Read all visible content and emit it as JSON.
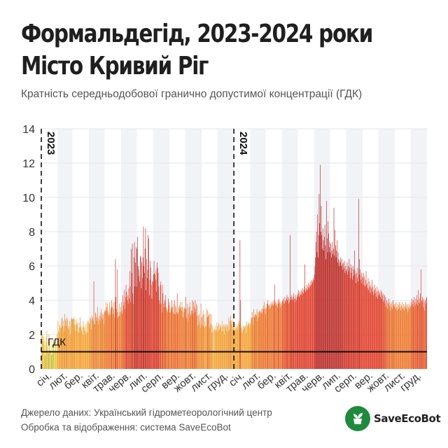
{
  "title_lines": [
    "Формальдегід, 2023-2024 роки",
    "Місто Кривий Ріг"
  ],
  "subtitle": "Кратність середньодобової гранично допустимої концентрації (ГДК)",
  "source_lines": [
    "Джерело даних: Український гідрометеорологічний центр",
    "Обробка та відображення: система SaveEcoBot"
  ],
  "brand": {
    "name": "SaveEcoBot",
    "icon": "seedling-in-bucket-icon"
  },
  "colors": {
    "green": "#6db33f",
    "yellow": "#e5c228",
    "orange": "#f29a1e",
    "dark_orange": "#ea6a16",
    "red": "#dd2a12",
    "dark_red": "#b5150f",
    "band": "#f1f3f7",
    "grid": "#e3e6ec",
    "limit_line": "#111111",
    "divider": "#111111",
    "logo": "#1f8a3d"
  },
  "chart_data": {
    "type": "bar",
    "title": "Формальдегід, 2023-2024 роки",
    "subtitle": "Кратність середньодобової гранично допустимої концентрації (ГДК)",
    "ylim": [
      0,
      14
    ],
    "yticks": [
      0,
      2,
      4,
      6,
      8,
      10,
      12,
      14
    ],
    "grid": true,
    "limit": {
      "value": 1,
      "label": "ГДК"
    },
    "years": [
      {
        "label": "2023",
        "start_month": 0
      },
      {
        "label": "2024",
        "start_month": 12
      }
    ],
    "month_labels": [
      "січ.",
      "лют.",
      "бер.",
      "квіт.",
      "трав.",
      "черв.",
      "лип.",
      "серп.",
      "вер.",
      "жовт.",
      "лист.",
      "груд.",
      "січ.",
      "лют.",
      "бер.",
      "квіт.",
      "трав.",
      "черв.",
      "лип.",
      "серп.",
      "вер.",
      "жовт.",
      "лист.",
      "груд."
    ],
    "monthly_daily_values": [
      [
        2.3,
        1.9,
        2.0,
        1.6,
        1.9,
        1.7,
        1.4,
        0.8,
        1.6,
        1.9,
        2.2,
        1.3,
        1.0,
        0.9,
        2.0,
        1.6,
        1.1,
        1.0,
        1.7,
        0.8,
        1.4,
        0.9,
        1.7,
        1.7,
        1.0,
        1.0,
        1.5,
        1.6,
        1.0,
        2.0,
        1.0
      ],
      [
        2.8,
        2.2,
        2.1,
        2.6,
        2.5,
        2.4,
        2.4,
        2.9,
        3.0,
        2.5,
        2.8,
        2.2,
        2.5,
        3.2,
        2.9,
        2.8,
        2.5,
        3.0,
        2.9,
        2.4,
        2.5,
        2.3,
        2.8,
        2.5,
        2.0,
        2.9,
        3.0,
        2.9
      ],
      [
        2.9,
        2.9,
        3.0,
        2.6,
        2.9,
        2.2,
        2.6,
        2.9,
        2.6,
        2.7,
        2.2,
        2.1,
        2.7,
        2.4,
        3.0,
        2.5,
        2.4,
        2.2,
        2.4,
        2.0,
        2.8,
        2.5,
        2.4,
        2.2,
        2.6,
        2.0,
        2.2,
        2.8,
        2.1,
        2.7,
        2.8
      ],
      [
        2.6,
        2.7,
        3.0,
        2.9,
        2.3,
        3.1,
        2.9,
        3.0,
        2.8,
        5.1,
        2.6,
        2.6,
        3.3,
        3.2,
        3.0,
        2.8,
        3.6,
        3.0,
        2.6,
        2.9,
        3.1,
        2.8,
        3.3,
        3.5,
        3.0,
        3.2,
        2.9,
        3.2,
        2.6,
        3.3
      ],
      [
        3.4,
        3.4,
        3.9,
        3.6,
        3.4,
        3.8,
        3.2,
        3.3,
        3.1,
        3.9,
        3.2,
        3.5,
        3.6,
        4.0,
        3.6,
        3.2,
        3.9,
        3.5,
        3.0,
        3.9,
        6.4,
        4.2,
        3.5,
        5.8,
        3.3,
        3.0,
        3.1,
        3.8,
        3.1,
        3.3,
        3.6
      ],
      [
        3.9,
        3.4,
        3.2,
        4.3,
        3.7,
        3.9,
        4.6,
        3.5,
        4.2,
        4.9,
        4.5,
        4.0,
        4.3,
        3.8,
        4.7,
        4.1,
        5.7,
        4.8,
        3.9,
        7.0,
        5.6,
        7.3,
        4.4,
        3.8,
        6.5,
        7.4,
        4.8,
        6.2,
        7.1,
        4.8
      ],
      [
        7.0,
        7.7,
        6.0,
        5.8,
        5.4,
        5.1,
        6.6,
        6.5,
        4.7,
        6.2,
        5.3,
        6.5,
        8.3,
        6.0,
        5.6,
        7.0,
        8.2,
        4.6,
        6.4,
        5.3,
        5.8,
        7.8,
        7.6,
        4.3,
        5.2,
        6.3,
        5.9,
        4.9,
        4.1,
        5.1,
        5.1
      ],
      [
        5.5,
        6.3,
        5.6,
        5.5,
        5.2,
        5.8,
        4.5,
        6.2,
        5.9,
        5.6,
        4.8,
        4.0,
        3.8,
        4.9,
        5.1,
        3.8,
        3.3,
        4.9,
        4.4,
        3.8,
        3.6,
        4.0,
        3.9,
        4.3,
        3.6,
        3.4,
        3.5,
        3.3,
        4.1,
        3.7,
        3.9
      ],
      [
        3.3,
        3.3,
        3.6,
        3.5,
        4.0,
        3.6,
        3.3,
        3.8,
        3.2,
        4.0,
        3.2,
        3.7,
        3.6,
        3.3,
        4.4,
        3.2,
        3.3,
        3.6,
        3.7,
        3.5,
        3.9,
        3.6,
        3.4,
        3.9,
        3.6,
        3.0,
        3.3,
        3.5,
        3.6,
        3.5
      ],
      [
        4.2,
        3.5,
        3.0,
        3.8,
        2.8,
        3.6,
        3.2,
        3.6,
        3.9,
        3.1,
        3.2,
        3.4,
        3.4,
        4.0,
        3.2,
        3.9,
        3.6,
        3.3,
        4.0,
        3.5,
        3.8,
        3.1,
        3.7,
        2.5,
        3.1,
        2.6,
        3.2,
        2.8,
        2.4,
        3.8,
        3.0
      ],
      [
        2.6,
        3.1,
        3.4,
        2.5,
        3.2,
        2.4,
        2.8,
        2.5,
        2.5,
        3.5,
        3.0,
        3.4,
        3.1,
        3.2,
        2.4,
        3.2,
        2.6,
        3.2,
        2.6,
        2.1,
        2.5,
        2.2,
        1.0,
        2.3,
        2.3,
        2.5,
        2.2,
        2.3,
        2.7,
        2.5
      ],
      [
        2.2,
        2.7,
        2.6,
        2.3,
        2.6,
        2.4,
        2.5,
        2.2,
        2.8,
        2.5,
        2.2,
        2.6,
        2.0,
        2.5,
        2.6,
        2.4,
        2.6,
        2.2,
        2.5,
        2.6,
        2.2,
        3.0,
        2.3,
        2.8,
        3.1,
        2.8,
        2.6,
        2.8,
        2.3,
        2.5,
        2.8
      ],
      [
        2.5,
        2.2,
        2.6,
        2.3,
        2.4,
        2.6,
        2.5,
        2.3,
        2.7,
        2.8,
        2.6,
        7.5,
        4.0,
        2.4,
        2.2,
        2.5,
        2.1,
        2.3,
        2.5,
        2.5,
        2.4,
        2.5,
        2.6,
        2.1,
        2.8,
        2.5,
        2.7,
        2.6,
        2.7,
        2.4,
        2.6
      ],
      [
        2.7,
        2.9,
        3.0,
        3.3,
        3.0,
        2.6,
        3.5,
        3.1,
        3.0,
        3.2,
        3.2,
        3.1,
        3.5,
        2.8,
        3.3,
        3.0,
        3.3,
        3.4,
        3.4,
        3.3,
        3.2,
        3.5,
        3.3,
        3.5,
        3.7,
        3.5,
        3.9,
        3.5,
        3.2
      ],
      [
        3.6,
        3.5,
        3.8,
        3.8,
        4.0,
        3.7,
        3.7,
        3.5,
        3.8,
        3.6,
        3.9,
        3.7,
        3.8,
        3.9,
        3.7,
        4.0,
        3.8,
        4.9,
        3.9,
        3.7,
        3.9,
        3.8,
        3.6,
        4.0,
        3.8,
        4.1,
        3.9,
        3.6,
        3.8,
        3.9,
        3.7
      ],
      [
        3.9,
        4.0,
        4.1,
        3.9,
        3.8,
        4.2,
        4.0,
        3.9,
        4.1,
        4.3,
        4.0,
        4.2,
        3.8,
        4.1,
        3.9,
        7.8,
        4.2,
        4.0,
        4.3,
        4.1,
        4.0,
        4.2,
        4.4,
        4.1,
        3.9,
        4.3,
        4.1,
        4.0,
        4.2,
        4.3
      ],
      [
        4.4,
        4.6,
        4.2,
        4.5,
        4.3,
        4.4,
        4.6,
        4.3,
        4.5,
        4.7,
        4.4,
        4.6,
        4.8,
        6.1,
        4.5,
        4.7,
        4.6,
        4.9,
        4.6,
        4.8,
        5.0,
        4.7,
        4.9,
        4.8,
        5.1,
        4.9,
        5.2,
        5.0,
        5.1,
        5.3,
        5.2
      ],
      [
        5.5,
        6.0,
        6.5,
        7.4,
        8.0,
        6.8,
        9.0,
        6.5,
        7.8,
        10.2,
        8.5,
        11.9,
        8.0,
        9.5,
        7.8,
        7.0,
        8.2,
        7.5,
        6.9,
        7.7,
        8.4,
        7.2,
        6.4,
        9.8,
        7.6,
        6.8,
        8.6,
        7.9,
        7.1,
        7.4
      ],
      [
        6.8,
        7.3,
        6.5,
        6.9,
        7.4,
        6.7,
        7.0,
        9.4,
        6.6,
        8.1,
        7.2,
        6.5,
        6.9,
        7.5,
        6.2,
        6.8,
        6.4,
        6.0,
        6.3,
        6.2,
        6.5,
        6.0,
        6.4,
        6.1,
        5.8,
        6.2,
        5.9,
        6.3,
        5.6,
        6.0,
        5.7
      ],
      [
        5.8,
        6.2,
        5.5,
        6.0,
        5.7,
        6.4,
        5.9,
        5.3,
        6.1,
        5.6,
        5.9,
        5.2,
        6.0,
        5.4,
        5.8,
        6.9,
        5.5,
        5.7,
        5.0,
        5.6,
        5.3,
        5.9,
        5.1,
        9.9,
        6.4,
        5.5,
        5.8,
        5.2,
        5.6,
        5.0,
        5.4
      ],
      [
        5.3,
        5.6,
        4.9,
        5.4,
        4.8,
        5.2,
        5.7,
        4.9,
        5.0,
        4.7,
        5.3,
        4.6,
        5.1,
        4.8,
        4.4,
        4.9,
        4.7,
        5.2,
        4.5,
        4.8,
        4.3,
        4.6,
        4.9,
        4.4,
        4.7,
        4.2,
        4.5,
        4.8,
        4.1,
        4.6
      ],
      [
        4.3,
        4.5,
        4.4,
        4.2,
        4.6,
        4.1,
        4.5,
        4.3,
        3.9,
        4.4,
        4.0,
        4.3,
        3.8,
        4.2,
        3.6,
        4.0,
        3.9,
        3.5,
        3.8,
        4.1,
        3.7,
        3.9,
        3.4,
        3.8,
        3.6,
        3.9,
        3.5,
        4.0,
        3.7,
        3.8,
        3.6
      ],
      [
        3.8,
        3.5,
        3.9,
        3.6,
        3.4,
        3.8,
        3.7,
        3.5,
        3.9,
        3.6,
        3.8,
        3.4,
        3.7,
        3.9,
        3.5,
        3.6,
        3.8,
        3.4,
        3.7,
        3.6,
        3.9,
        3.5,
        3.7,
        3.8,
        3.3,
        3.6,
        3.8,
        3.5,
        3.7,
        3.6
      ],
      [
        3.9,
        3.7,
        4.1,
        3.8,
        4.0,
        3.6,
        4.2,
        3.9,
        3.7,
        4.1,
        3.8,
        4.3,
        4.0,
        3.7,
        4.6,
        3.9,
        4.1,
        3.8,
        4.4,
        5.8,
        3.9,
        4.0,
        4.2,
        3.6,
        4.1,
        3.9,
        3.4,
        4.0,
        3.8,
        4.1,
        4.2
      ]
    ]
  }
}
